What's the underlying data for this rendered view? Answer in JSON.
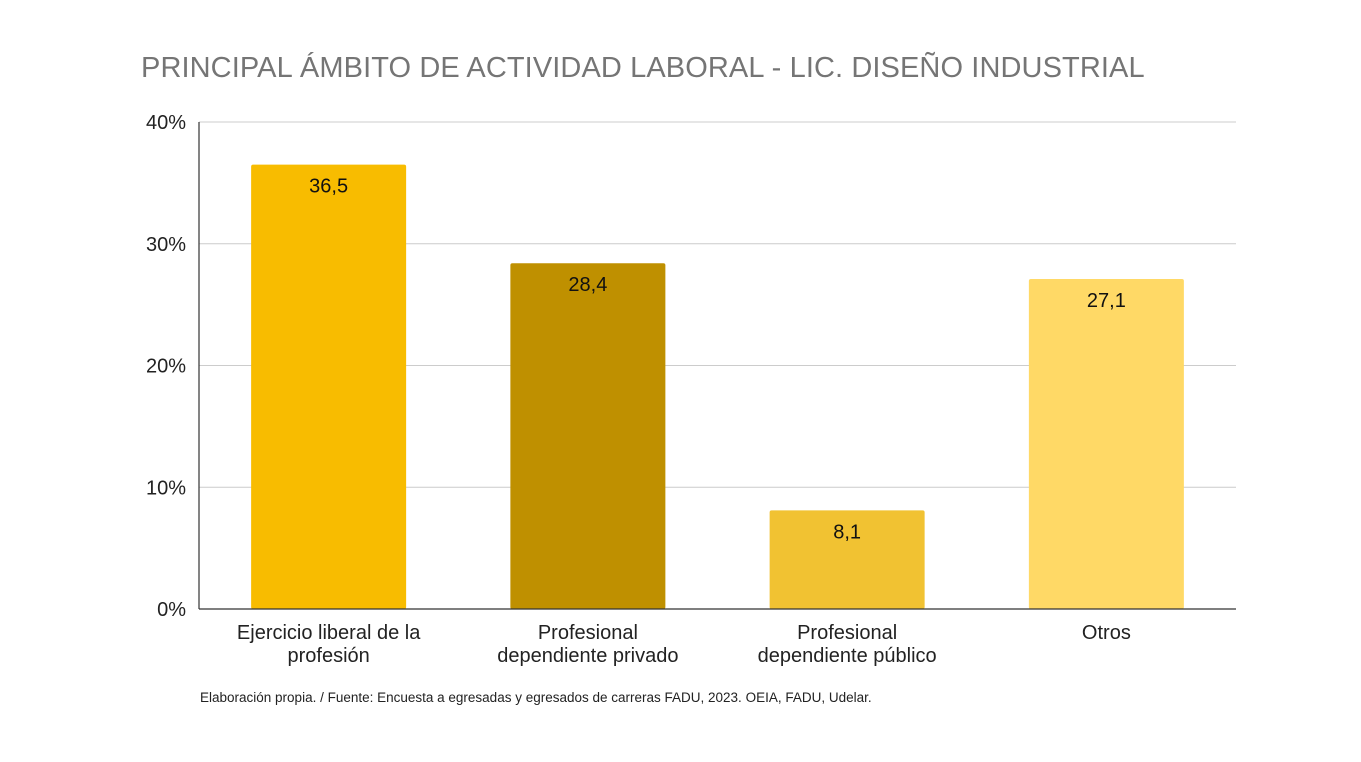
{
  "chart_data": {
    "type": "bar",
    "title": "PRINCIPAL ÁMBITO DE ACTIVIDAD LABORAL - LIC. DISEÑO INDUSTRIAL",
    "xlabel": "",
    "ylabel": "",
    "categories": [
      [
        "Ejercicio liberal de la",
        "profesión"
      ],
      [
        "Profesional",
        "dependiente privado"
      ],
      [
        "Profesional",
        "dependiente público"
      ],
      [
        "Otros"
      ]
    ],
    "values": [
      36.5,
      28.4,
      8.1,
      27.1
    ],
    "data_labels": [
      "36,5",
      "28,4",
      "8,1",
      "27,1"
    ],
    "colors": [
      "#F8BC00",
      "#BF9000",
      "#F1C232",
      "#FFD966"
    ],
    "ylim": [
      0,
      40
    ],
    "yticks": [
      0,
      10,
      20,
      30,
      40
    ],
    "ytick_labels": [
      "0%",
      "10%",
      "20%",
      "30%",
      "40%"
    ],
    "grid": true,
    "legend": "none"
  },
  "source_note": "Elaboración propia. / Fuente: Encuesta a egresadas y egresados de carreras FADU, 2023. OEIA, FADU, Udelar."
}
